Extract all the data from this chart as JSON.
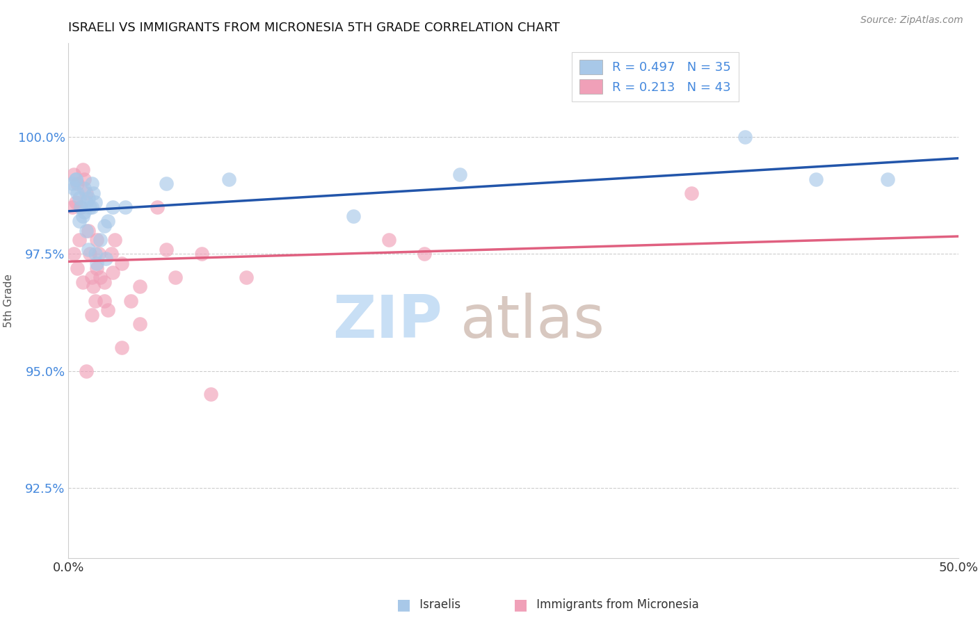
{
  "title": "ISRAELI VS IMMIGRANTS FROM MICRONESIA 5TH GRADE CORRELATION CHART",
  "source_text": "Source: ZipAtlas.com",
  "ylabel": "5th Grade",
  "xlim": [
    0.0,
    50.0
  ],
  "ylim": [
    91.0,
    102.0
  ],
  "yticks": [
    92.5,
    95.0,
    97.5,
    100.0
  ],
  "ytick_labels": [
    "92.5%",
    "95.0%",
    "97.5%",
    "100.0%"
  ],
  "xticks": [
    0.0,
    10.0,
    20.0,
    30.0,
    40.0,
    50.0
  ],
  "xtick_labels": [
    "0.0%",
    "",
    "",
    "",
    "",
    "50.0%"
  ],
  "blue_color": "#a8c8e8",
  "pink_color": "#f0a0b8",
  "blue_line_color": "#2255aa",
  "pink_line_color": "#e06080",
  "legend_R_blue": "R = 0.497",
  "legend_N_blue": "N = 35",
  "legend_R_pink": "R = 0.213",
  "legend_N_pink": "N = 43",
  "blue_x": [
    0.2,
    0.3,
    0.4,
    0.5,
    0.6,
    0.7,
    0.8,
    0.9,
    1.0,
    1.0,
    1.1,
    1.2,
    1.3,
    1.3,
    1.4,
    1.5,
    1.5,
    1.6,
    1.8,
    2.0,
    2.2,
    2.5,
    3.2,
    5.5,
    9.0,
    16.0,
    22.0,
    38.0,
    42.0,
    46.0,
    0.4,
    0.6,
    0.9,
    1.1,
    2.1
  ],
  "blue_y": [
    99.0,
    98.9,
    99.1,
    98.8,
    98.7,
    98.5,
    98.3,
    98.4,
    98.6,
    98.0,
    98.7,
    98.5,
    98.5,
    99.0,
    98.8,
    97.5,
    98.6,
    97.3,
    97.8,
    98.1,
    98.2,
    98.5,
    98.5,
    99.0,
    99.1,
    98.3,
    99.2,
    100.0,
    99.1,
    99.1,
    99.1,
    98.2,
    98.9,
    97.6,
    97.4
  ],
  "pink_x": [
    0.2,
    0.3,
    0.3,
    0.4,
    0.5,
    0.6,
    0.7,
    0.8,
    0.9,
    1.0,
    1.1,
    1.2,
    1.3,
    1.4,
    1.5,
    1.6,
    1.7,
    1.8,
    2.0,
    2.2,
    2.4,
    2.6,
    3.0,
    3.5,
    4.0,
    5.0,
    6.0,
    7.5,
    10.0,
    20.0,
    35.0,
    0.5,
    0.8,
    1.0,
    1.3,
    1.6,
    2.0,
    2.5,
    3.0,
    4.0,
    5.5,
    8.0,
    18.0
  ],
  "pink_y": [
    98.5,
    97.5,
    99.2,
    98.6,
    99.0,
    97.8,
    98.5,
    99.3,
    99.1,
    98.8,
    98.0,
    97.5,
    97.0,
    96.8,
    96.5,
    97.2,
    97.5,
    97.0,
    96.5,
    96.3,
    97.5,
    97.8,
    97.3,
    96.5,
    96.8,
    98.5,
    97.0,
    97.5,
    97.0,
    97.5,
    98.8,
    97.2,
    96.9,
    95.0,
    96.2,
    97.8,
    96.9,
    97.1,
    95.5,
    96.0,
    97.6,
    94.5,
    97.8
  ],
  "background_color": "#ffffff",
  "grid_color": "#cccccc",
  "watermark_zip_color": "#c8dff5",
  "watermark_atlas_color": "#d8c8c0"
}
